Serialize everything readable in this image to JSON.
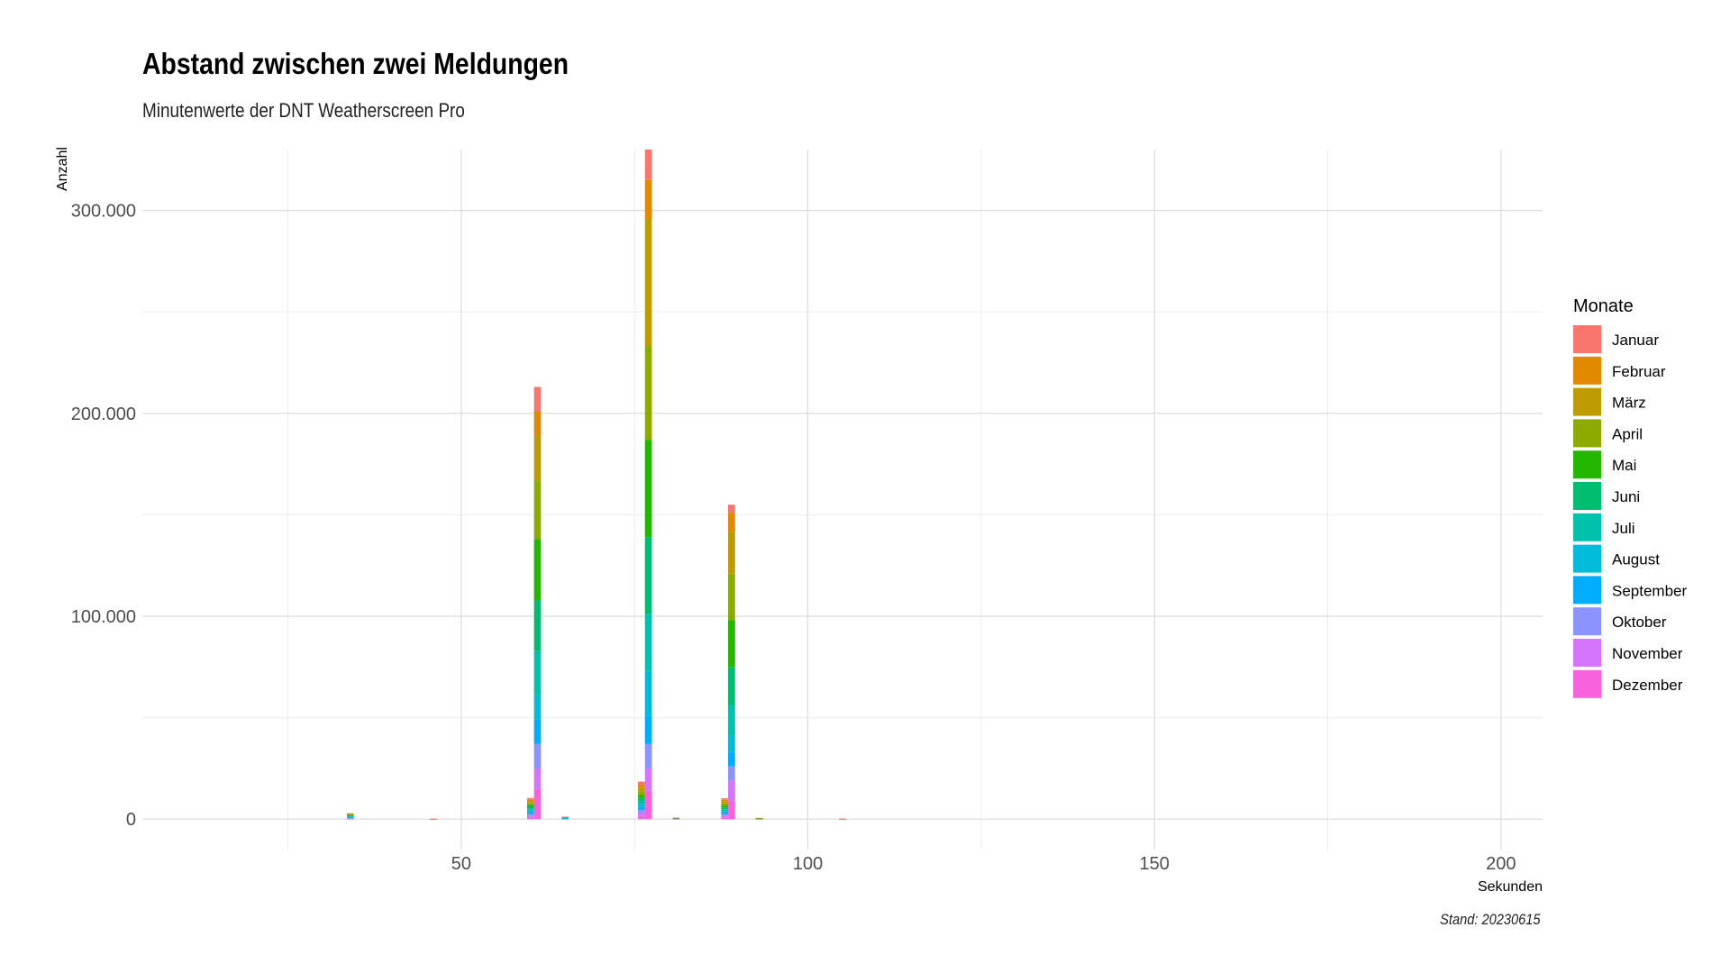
{
  "chart_data": {
    "type": "bar",
    "stacked": true,
    "title": "Abstand zwischen zwei Meldungen",
    "subtitle": "Minutenwerte der DNT Weatherscreen Pro",
    "caption": "Stand: 20230615",
    "xlabel": "Sekunden",
    "ylabel": "Anzahl",
    "xlim": [
      4,
      206
    ],
    "ylim": [
      -15000,
      330000
    ],
    "x_ticks": [
      50,
      100,
      150,
      200
    ],
    "x_tick_labels": [
      "50",
      "100",
      "150",
      "200"
    ],
    "y_ticks": [
      0,
      100000,
      200000,
      300000
    ],
    "y_tick_labels": [
      "0",
      "100.000",
      "200.000",
      "300.000"
    ],
    "grid": true,
    "legend_title": "Monate",
    "legend_position": "right",
    "series": [
      {
        "name": "Januar",
        "color": "#F8766D"
      },
      {
        "name": "Februar",
        "color": "#E18A00"
      },
      {
        "name": "März",
        "color": "#BE9C00"
      },
      {
        "name": "April",
        "color": "#8CAB00"
      },
      {
        "name": "Mai",
        "color": "#24B700"
      },
      {
        "name": "Juni",
        "color": "#00BE70"
      },
      {
        "name": "Juli",
        "color": "#00C1AB"
      },
      {
        "name": "August",
        "color": "#00BBDA"
      },
      {
        "name": "September",
        "color": "#00ACFC"
      },
      {
        "name": "Oktober",
        "color": "#8B93FF"
      },
      {
        "name": "November",
        "color": "#D575FE"
      },
      {
        "name": "Dezember",
        "color": "#F962DD"
      }
    ],
    "bars": [
      {
        "x": 34,
        "values": [
          150,
          150,
          250,
          250,
          300,
          350,
          400,
          300,
          250,
          200,
          150,
          150
        ]
      },
      {
        "x": 46,
        "values": [
          20,
          20,
          20,
          20,
          20,
          20,
          20,
          20,
          20,
          20,
          20,
          20
        ]
      },
      {
        "x": 60,
        "values": [
          700,
          800,
          900,
          900,
          800,
          900,
          1000,
          1000,
          900,
          900,
          800,
          800
        ]
      },
      {
        "x": 61,
        "values": [
          12000,
          12000,
          22000,
          29000,
          30000,
          25000,
          22000,
          12000,
          12000,
          12000,
          10000,
          15000
        ]
      },
      {
        "x": 65,
        "values": [
          100,
          100,
          100,
          100,
          100,
          100,
          100,
          100,
          100,
          100,
          100,
          100
        ]
      },
      {
        "x": 76,
        "values": [
          1500,
          1500,
          1800,
          1800,
          1500,
          1400,
          1500,
          1500,
          1500,
          1500,
          1500,
          1500
        ]
      },
      {
        "x": 77,
        "values": [
          15000,
          19000,
          63000,
          46000,
          48000,
          38000,
          28000,
          22000,
          14000,
          12000,
          11000,
          14000
        ]
      },
      {
        "x": 81,
        "values": [
          60,
          60,
          60,
          60,
          60,
          60,
          60,
          60,
          60,
          60,
          60,
          60
        ]
      },
      {
        "x": 88,
        "values": [
          800,
          800,
          1000,
          1000,
          900,
          900,
          900,
          800,
          800,
          800,
          800,
          800
        ]
      },
      {
        "x": 89,
        "values": [
          4000,
          9000,
          21000,
          23000,
          23000,
          19000,
          15000,
          8000,
          7000,
          7000,
          10000,
          9000
        ]
      },
      {
        "x": 93,
        "values": [
          50,
          50,
          50,
          50,
          50,
          50,
          50,
          50,
          50,
          50,
          50,
          50
        ]
      },
      {
        "x": 105,
        "values": [
          20,
          20,
          20,
          20,
          20,
          20,
          20,
          20,
          20,
          20,
          20,
          20
        ]
      }
    ]
  }
}
